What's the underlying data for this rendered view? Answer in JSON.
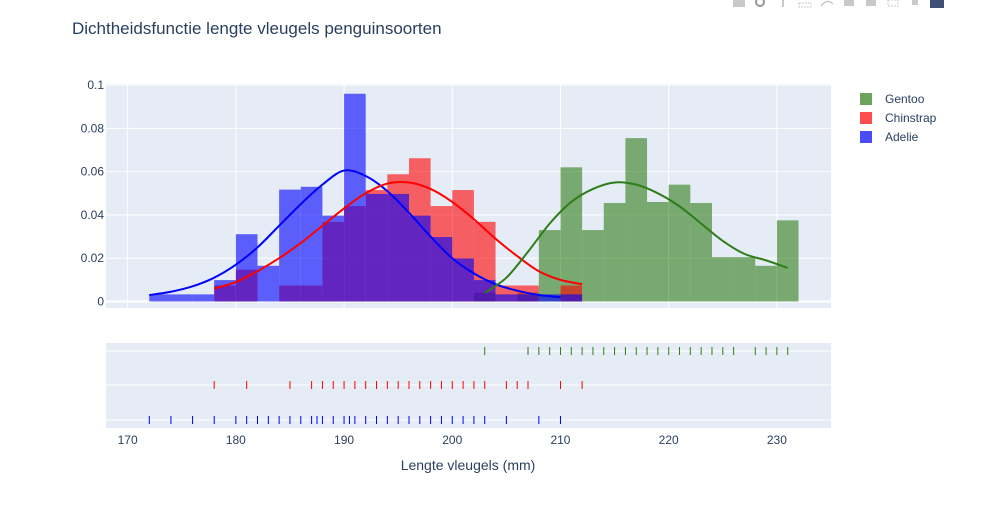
{
  "chart_data": {
    "type": "histogram",
    "title": "Dichtheidsfunctie lengte vleugels penguinsoorten",
    "xlabel": "Lengte vleugels (mm)",
    "ylabel": "",
    "xlim": [
      168,
      235
    ],
    "ylim": [
      -0.003,
      0.1005
    ],
    "x_ticks": [
      170,
      180,
      190,
      200,
      210,
      220,
      230
    ],
    "y_ticks": [
      0,
      0.02,
      0.04,
      0.06,
      0.08,
      0.1
    ],
    "y_tick_labels": [
      "0",
      "0.02",
      "0.04",
      "0.06",
      "0.08",
      "0.1"
    ],
    "bin_width": 2,
    "grid": true,
    "legend_position": "top-right",
    "colors": {
      "Adelie": "#0000ff",
      "Chinstrap": "#ff0000",
      "Gentoo": "#2e7d18"
    },
    "legend": [
      {
        "name": "Gentoo",
        "color": "#2e7d18"
      },
      {
        "name": "Chinstrap",
        "color": "#ff0000"
      },
      {
        "name": "Adelie",
        "color": "#0000ff"
      }
    ],
    "series": [
      {
        "name": "Adelie",
        "color": "#0000ff",
        "bins": [
          {
            "x": 172,
            "y": 0.0033
          },
          {
            "x": 174,
            "y": 0.0033
          },
          {
            "x": 176,
            "y": 0.0033
          },
          {
            "x": 178,
            "y": 0.0099
          },
          {
            "x": 180,
            "y": 0.0311
          },
          {
            "x": 182,
            "y": 0.0165
          },
          {
            "x": 184,
            "y": 0.0517
          },
          {
            "x": 186,
            "y": 0.053
          },
          {
            "x": 188,
            "y": 0.0397
          },
          {
            "x": 190,
            "y": 0.096
          },
          {
            "x": 192,
            "y": 0.0497
          },
          {
            "x": 194,
            "y": 0.0497
          },
          {
            "x": 196,
            "y": 0.0397
          },
          {
            "x": 198,
            "y": 0.0298
          },
          {
            "x": 200,
            "y": 0.0199
          },
          {
            "x": 202,
            "y": 0.0099
          },
          {
            "x": 204,
            "y": 0.0033
          },
          {
            "x": 206,
            "y": 0.0033
          },
          {
            "x": 208,
            "y": 0.0033
          },
          {
            "x": 210,
            "y": 0.0033
          }
        ],
        "curve": [
          [
            172,
            0.003
          ],
          [
            174,
            0.0045
          ],
          [
            176,
            0.007
          ],
          [
            178,
            0.011
          ],
          [
            180,
            0.017
          ],
          [
            182,
            0.025
          ],
          [
            184,
            0.035
          ],
          [
            186,
            0.045
          ],
          [
            188,
            0.054
          ],
          [
            190,
            0.0605
          ],
          [
            192,
            0.058
          ],
          [
            194,
            0.051
          ],
          [
            196,
            0.041
          ],
          [
            198,
            0.03
          ],
          [
            200,
            0.02
          ],
          [
            202,
            0.013
          ],
          [
            204,
            0.008
          ],
          [
            206,
            0.005
          ],
          [
            208,
            0.003
          ],
          [
            210,
            0.002
          ]
        ],
        "rug": [
          172,
          174,
          176,
          178,
          180,
          181,
          182,
          183,
          184,
          185,
          186,
          187,
          187.5,
          188,
          189,
          190,
          190.5,
          191,
          192,
          193,
          194,
          195,
          196,
          197,
          198,
          199,
          200,
          201,
          202,
          203,
          205,
          208,
          210
        ]
      },
      {
        "name": "Chinstrap",
        "color": "#ff0000",
        "bins": [
          {
            "x": 178,
            "y": 0.0074
          },
          {
            "x": 180,
            "y": 0.0147
          },
          {
            "x": 184,
            "y": 0.0074
          },
          {
            "x": 186,
            "y": 0.0074
          },
          {
            "x": 188,
            "y": 0.0368
          },
          {
            "x": 190,
            "y": 0.0441
          },
          {
            "x": 192,
            "y": 0.0515
          },
          {
            "x": 194,
            "y": 0.0588
          },
          {
            "x": 196,
            "y": 0.0662
          },
          {
            "x": 198,
            "y": 0.0441
          },
          {
            "x": 200,
            "y": 0.0515
          },
          {
            "x": 202,
            "y": 0.0368
          },
          {
            "x": 204,
            "y": 0.0074
          },
          {
            "x": 206,
            "y": 0.0074
          },
          {
            "x": 210,
            "y": 0.0074
          }
        ],
        "curve": [
          [
            178,
            0.006
          ],
          [
            180,
            0.009
          ],
          [
            182,
            0.014
          ],
          [
            184,
            0.02
          ],
          [
            186,
            0.027
          ],
          [
            188,
            0.035
          ],
          [
            190,
            0.043
          ],
          [
            192,
            0.05
          ],
          [
            194,
            0.0545
          ],
          [
            196,
            0.055
          ],
          [
            198,
            0.052
          ],
          [
            200,
            0.046
          ],
          [
            202,
            0.038
          ],
          [
            204,
            0.029
          ],
          [
            206,
            0.021
          ],
          [
            208,
            0.014
          ],
          [
            210,
            0.01
          ],
          [
            212,
            0.008
          ]
        ],
        "rug": [
          178,
          181,
          185,
          187,
          188,
          189,
          190,
          191,
          192,
          193,
          194,
          195,
          196,
          197,
          198,
          199,
          200,
          201,
          202,
          203,
          205,
          206,
          207,
          210,
          212
        ]
      },
      {
        "name": "Gentoo",
        "color": "#2e7d18",
        "bins": [
          {
            "x": 202,
            "y": 0.0041
          },
          {
            "x": 206,
            "y": 0.0041
          },
          {
            "x": 208,
            "y": 0.033
          },
          {
            "x": 210,
            "y": 0.062
          },
          {
            "x": 212,
            "y": 0.033
          },
          {
            "x": 214,
            "y": 0.0455
          },
          {
            "x": 216,
            "y": 0.0755
          },
          {
            "x": 218,
            "y": 0.046
          },
          {
            "x": 220,
            "y": 0.054
          },
          {
            "x": 222,
            "y": 0.0455
          },
          {
            "x": 224,
            "y": 0.0205
          },
          {
            "x": 226,
            "y": 0.0205
          },
          {
            "x": 228,
            "y": 0.0165
          },
          {
            "x": 230,
            "y": 0.0375
          }
        ],
        "curve": [
          [
            203,
            0.004
          ],
          [
            205,
            0.011
          ],
          [
            207,
            0.023
          ],
          [
            209,
            0.036
          ],
          [
            211,
            0.046
          ],
          [
            213,
            0.052
          ],
          [
            215,
            0.055
          ],
          [
            217,
            0.054
          ],
          [
            219,
            0.05
          ],
          [
            221,
            0.044
          ],
          [
            223,
            0.036
          ],
          [
            225,
            0.028
          ],
          [
            227,
            0.022
          ],
          [
            229,
            0.019
          ],
          [
            231,
            0.0155
          ]
        ],
        "rug": [
          203,
          207,
          208,
          209,
          210,
          211,
          212,
          213,
          214,
          215,
          216,
          217,
          218,
          219,
          220,
          221,
          222,
          223,
          224,
          225,
          226,
          228,
          229,
          230,
          231
        ]
      }
    ]
  }
}
